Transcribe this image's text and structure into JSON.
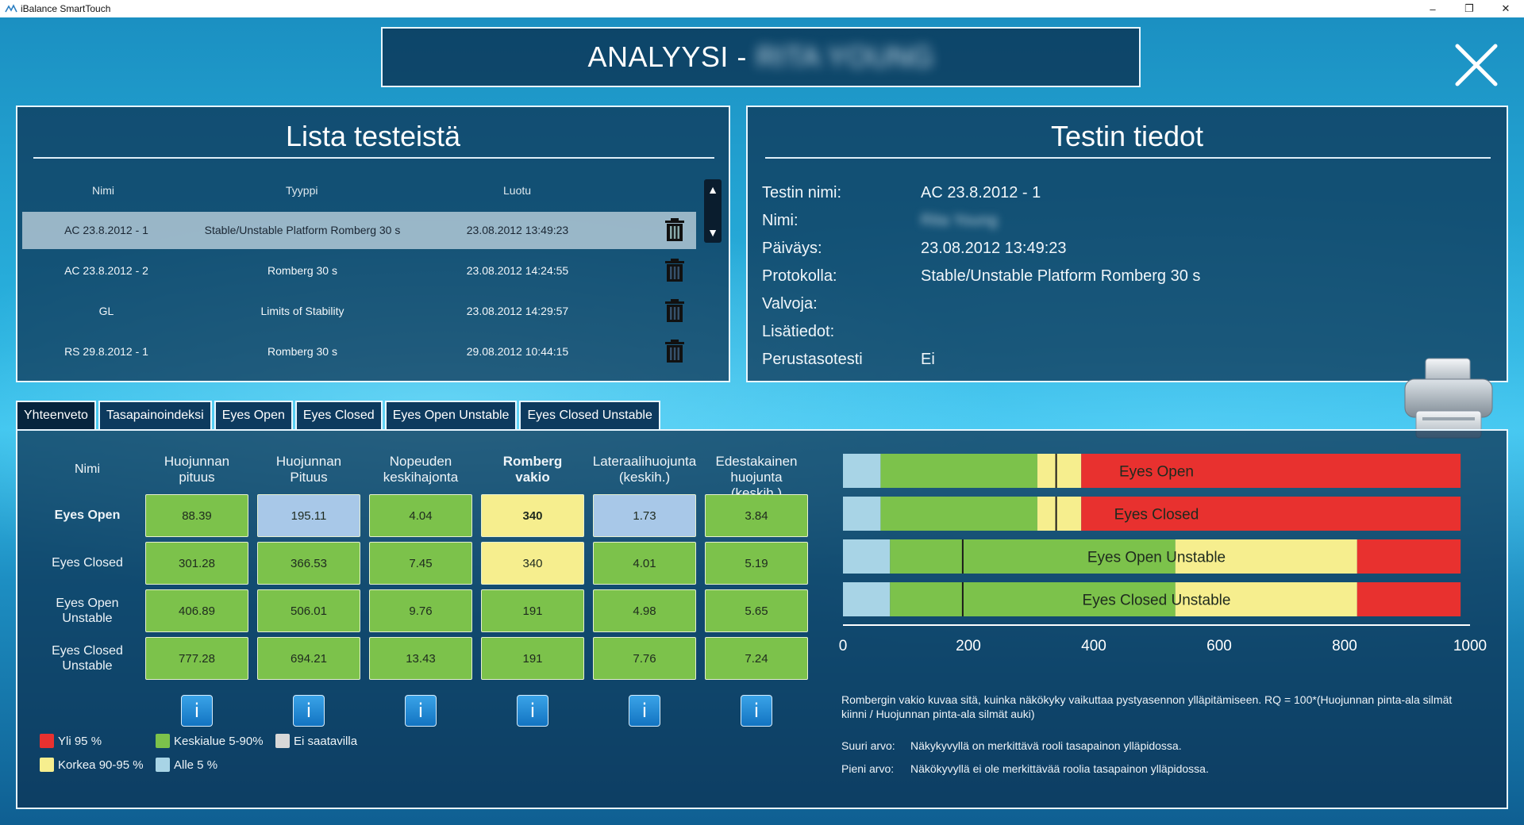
{
  "window": {
    "title": "iBalance SmartTouch"
  },
  "header": {
    "title": "ANALYYSI -",
    "patient_name": "RITA YOUNG"
  },
  "list_panel": {
    "title": "Lista testeistä",
    "columns": [
      "Nimi",
      "Tyyppi",
      "Luotu"
    ],
    "rows": [
      {
        "name": "AC 23.8.2012 - 1",
        "type": "Stable/Unstable Platform Romberg 30 s",
        "created": "23.08.2012 13:49:23",
        "selected": true
      },
      {
        "name": "AC 23.8.2012 - 2",
        "type": "Romberg 30 s",
        "created": "23.08.2012 14:24:55",
        "selected": false
      },
      {
        "name": "GL",
        "type": "Limits of Stability",
        "created": "23.08.2012 14:29:57",
        "selected": false
      },
      {
        "name": "RS 29.8.2012 - 1",
        "type": "Romberg 30 s",
        "created": "29.08.2012 10:44:15",
        "selected": false
      }
    ]
  },
  "details_panel": {
    "title": "Testin tiedot",
    "fields": [
      {
        "label": "Testin nimi:",
        "value": "AC 23.8.2012 - 1"
      },
      {
        "label": "Nimi:",
        "value": "Rita Young"
      },
      {
        "label": "Päiväys:",
        "value": "23.08.2012 13:49:23"
      },
      {
        "label": "Protokolla:",
        "value": "Stable/Unstable Platform Romberg 30 s"
      },
      {
        "label": "Valvoja:",
        "value": ""
      },
      {
        "label": "Lisätiedot:",
        "value": ""
      },
      {
        "label": "Perustasotesti",
        "value": "Ei"
      }
    ]
  },
  "tabs": [
    "Yhteenveto",
    "Tasapainoindeksi",
    "Eyes Open",
    "Eyes Closed",
    "Eyes Open Unstable",
    "Eyes Closed Unstable"
  ],
  "active_tab": "Yhteenveto",
  "summary_table": {
    "row_header_label": "Nimi",
    "columns": [
      {
        "line1": "Huojunnan",
        "line2": "pituus",
        "bold": false
      },
      {
        "line1": "Huojunnan",
        "line2": "Pituus",
        "bold": false
      },
      {
        "line1": "Nopeuden",
        "line2": "keskihajonta",
        "bold": false
      },
      {
        "line1": "Romberg",
        "line2": "vakio",
        "bold": true
      },
      {
        "line1": "Lateraalihuojunta",
        "line2": "(keskih.)",
        "bold": false
      },
      {
        "line1": "Edestakainen",
        "line2": "huojunta (keskih.)",
        "bold": false
      }
    ],
    "rows": [
      {
        "line1": "Eyes Open",
        "line2": "",
        "bold": true,
        "cells": [
          {
            "v": "88.39",
            "c": "green"
          },
          {
            "v": "195.11",
            "c": "blue"
          },
          {
            "v": "4.04",
            "c": "green"
          },
          {
            "v": "340",
            "c": "yellow",
            "b": true
          },
          {
            "v": "1.73",
            "c": "blue"
          },
          {
            "v": "3.84",
            "c": "green"
          }
        ]
      },
      {
        "line1": "Eyes Closed",
        "line2": "",
        "bold": false,
        "cells": [
          {
            "v": "301.28",
            "c": "green"
          },
          {
            "v": "366.53",
            "c": "green"
          },
          {
            "v": "7.45",
            "c": "green"
          },
          {
            "v": "340",
            "c": "yellow"
          },
          {
            "v": "4.01",
            "c": "green"
          },
          {
            "v": "5.19",
            "c": "green"
          }
        ]
      },
      {
        "line1": "Eyes Open",
        "line2": "Unstable",
        "bold": false,
        "cells": [
          {
            "v": "406.89",
            "c": "green"
          },
          {
            "v": "506.01",
            "c": "green"
          },
          {
            "v": "9.76",
            "c": "green"
          },
          {
            "v": "191",
            "c": "green"
          },
          {
            "v": "4.98",
            "c": "green"
          },
          {
            "v": "5.65",
            "c": "green"
          }
        ]
      },
      {
        "line1": "Eyes Closed",
        "line2": "Unstable",
        "bold": false,
        "cells": [
          {
            "v": "777.28",
            "c": "green"
          },
          {
            "v": "694.21",
            "c": "green"
          },
          {
            "v": "13.43",
            "c": "green"
          },
          {
            "v": "191",
            "c": "green"
          },
          {
            "v": "7.76",
            "c": "green"
          },
          {
            "v": "7.24",
            "c": "green"
          }
        ]
      }
    ],
    "info_button_label": "i"
  },
  "legend": [
    {
      "label": "Yli 95 %",
      "color": "#e8312f"
    },
    {
      "label": "Keskialue 5-90%",
      "color": "#7cc24b"
    },
    {
      "label": "Ei saatavilla",
      "color": "#d8d8d8"
    },
    {
      "label": "Korkea 90-95 %",
      "color": "#f6ee8e"
    },
    {
      "label": "Alle 5 %",
      "color": "#a8d4e6"
    }
  ],
  "colors": {
    "red": "#e8312f",
    "yellow": "#f6ee8e",
    "green": "#7cc24b",
    "lightblue": "#a8d4e6",
    "marker": "#1a1a1a"
  },
  "chart_data": {
    "type": "bar",
    "orientation": "horizontal-stacked-range",
    "xlim": [
      0,
      1000
    ],
    "ticks": [
      0,
      200,
      400,
      600,
      800,
      1000
    ],
    "series": [
      {
        "name": "Eyes Open",
        "segments": [
          {
            "from": 0,
            "to": 60,
            "color": "lightblue"
          },
          {
            "from": 60,
            "to": 310,
            "color": "green"
          },
          {
            "from": 310,
            "to": 380,
            "color": "yellow"
          },
          {
            "from": 380,
            "to": 985,
            "color": "red"
          }
        ],
        "marker": 340
      },
      {
        "name": "Eyes Closed",
        "segments": [
          {
            "from": 0,
            "to": 60,
            "color": "lightblue"
          },
          {
            "from": 60,
            "to": 310,
            "color": "green"
          },
          {
            "from": 310,
            "to": 380,
            "color": "yellow"
          },
          {
            "from": 380,
            "to": 985,
            "color": "red"
          }
        ],
        "marker": 340
      },
      {
        "name": "Eyes Open Unstable",
        "segments": [
          {
            "from": 0,
            "to": 75,
            "color": "lightblue"
          },
          {
            "from": 75,
            "to": 530,
            "color": "green"
          },
          {
            "from": 530,
            "to": 820,
            "color": "yellow"
          },
          {
            "from": 820,
            "to": 985,
            "color": "red"
          }
        ],
        "marker": 191
      },
      {
        "name": "Eyes Closed Unstable",
        "segments": [
          {
            "from": 0,
            "to": 75,
            "color": "lightblue"
          },
          {
            "from": 75,
            "to": 530,
            "color": "green"
          },
          {
            "from": 530,
            "to": 820,
            "color": "yellow"
          },
          {
            "from": 820,
            "to": 985,
            "color": "red"
          }
        ],
        "marker": 191
      }
    ]
  },
  "description": {
    "main": "Rombergin vakio kuvaa sitä, kuinka näkökyky vaikuttaa pystyasennon ylläpitämiseen. RQ = 100*(Huojunnan pinta-ala silmät kiinni / Huojunnan pinta-ala silmät auki)",
    "high_label": "Suuri arvo:",
    "high_text": "Näkykyvyllä on merkittävä rooli tasapainon ylläpidossa.",
    "low_label": "Pieni arvo:",
    "low_text": "Näkökyvyllä ei ole merkittävää roolia tasapainon ylläpidossa."
  }
}
